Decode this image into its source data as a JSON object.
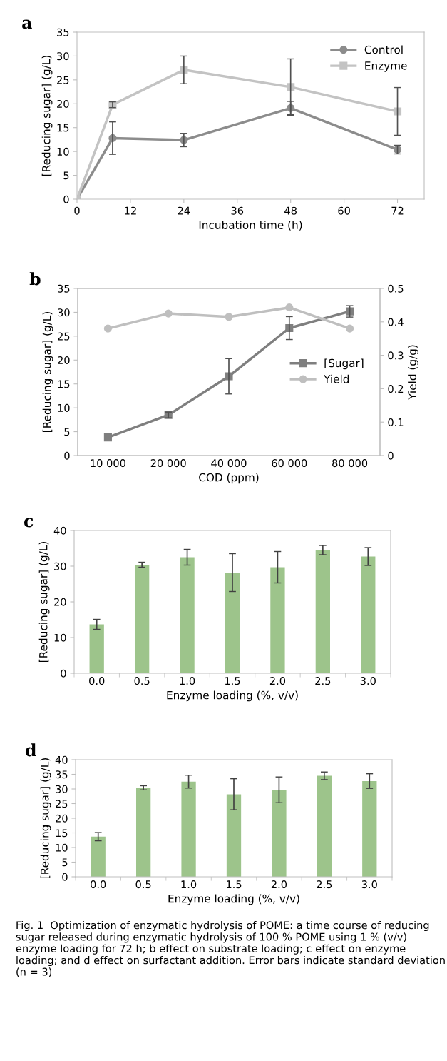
{
  "chart_data": [
    {
      "type": "line",
      "title": "a",
      "xlabel": "Incubation time (h)",
      "ylabel": "[Reducing sugar] (g/L)",
      "xlim": [
        0,
        78
      ],
      "xticks": [
        0,
        12,
        24,
        36,
        48,
        60,
        72
      ],
      "ylim": [
        0,
        35
      ],
      "yticks": [
        0,
        5,
        10,
        15,
        20,
        25,
        30,
        35
      ],
      "grid": false,
      "legend": "top right",
      "series": [
        {
          "name": "Control",
          "color": "#8c8c8c",
          "marker": "circle",
          "x": [
            0,
            8,
            24,
            48,
            72
          ],
          "values": [
            0,
            12.8,
            12.4,
            19.1,
            10.4
          ],
          "errors": [
            null,
            3.4,
            1.4,
            1.4,
            0.9
          ]
        },
        {
          "name": "Enzyme",
          "color": "#c3c3c3",
          "marker": "square",
          "x": [
            0,
            8,
            24,
            48,
            72
          ],
          "values": [
            0,
            19.8,
            27.1,
            23.5,
            18.4
          ],
          "errors": [
            null,
            0.6,
            2.9,
            5.9,
            5.0
          ]
        }
      ]
    },
    {
      "type": "line",
      "title": "b",
      "xlabel": "COD (ppm)",
      "ylabel": "[Reducing sugar] (g/L)",
      "y2label": "Yield (g/g)",
      "categories": [
        "10 000",
        "20 000",
        "40 000",
        "60 000",
        "80 000"
      ],
      "ylim": [
        0,
        35
      ],
      "yticks": [
        0,
        5,
        10,
        15,
        20,
        25,
        30,
        35
      ],
      "y2lim": [
        0,
        0.5
      ],
      "y2ticks": [
        0,
        0.1,
        0.2,
        0.3,
        0.4,
        0.5
      ],
      "grid": false,
      "legend": "right",
      "series": [
        {
          "name": "[Sugar]",
          "color": "#7f7f7f",
          "marker": "square",
          "values": [
            3.8,
            8.5,
            16.6,
            26.7,
            30.2
          ],
          "errors": [
            null,
            0.6,
            3.7,
            2.4,
            1.2
          ]
        },
        {
          "name": "Yield",
          "color": "#bfbfbf",
          "marker": "circle",
          "axis": "y2",
          "values": [
            0.38,
            0.425,
            0.415,
            0.443,
            0.38
          ]
        }
      ]
    },
    {
      "type": "bar",
      "title": "c",
      "xlabel": "Enzyme loading (%, v/v)",
      "ylabel": "[Reducing sugar] (g/L)",
      "categories": [
        "0.0",
        "0.5",
        "1.0",
        "1.5",
        "2.0",
        "2.5",
        "3.0"
      ],
      "ylim": [
        0,
        40
      ],
      "yticks": [
        0,
        10,
        20,
        30,
        40
      ],
      "grid": false,
      "series": [
        {
          "color": "#9dc48b",
          "values": [
            13.7,
            30.4,
            32.5,
            28.2,
            29.7,
            34.5,
            32.7
          ],
          "errors": [
            1.4,
            0.7,
            2.2,
            5.3,
            4.4,
            1.3,
            2.5
          ]
        }
      ]
    },
    {
      "type": "bar",
      "title": "d",
      "xlabel": "Enzyme loading (%, v/v)",
      "ylabel": "[Reducing sugar] (g/L)",
      "categories": [
        "0.0",
        "0.5",
        "1.0",
        "1.5",
        "2.0",
        "2.5",
        "3.0"
      ],
      "ylim": [
        0,
        40
      ],
      "yticks": [
        0,
        5,
        10,
        15,
        20,
        25,
        30,
        35,
        40
      ],
      "grid": false,
      "annotations": [
        "Fig. 1  Optimization of enzymatic hydrolysis of POME: a time course of reducing sugar released during enzymatic hydrolysis of 100 % POME using 1 % (v/v) enzyme loading for 72 h; b effect on substrate loading; c effect on enzyme loading; and d effect on surfactant addition. Error bars indicate standard deviation (n = 3)"
      ],
      "series": [
        {
          "color": "#9dc48b",
          "values": [
            13.7,
            30.4,
            32.5,
            28.2,
            29.7,
            34.5,
            32.7
          ],
          "errors": [
            1.4,
            0.7,
            2.2,
            5.3,
            4.4,
            1.3,
            2.5
          ]
        }
      ]
    }
  ]
}
